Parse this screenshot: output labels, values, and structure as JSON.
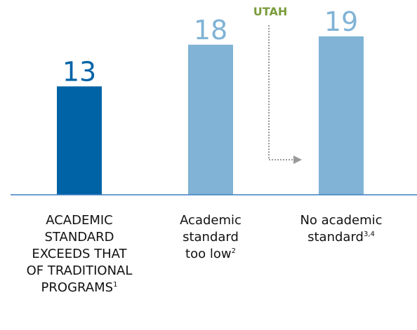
{
  "chart_data": {
    "type": "bar",
    "categories": [
      "ACADEMIC STANDARD EXCEEDS THAT OF TRADITIONAL PROGRAMS",
      "Academic standard too low",
      "No academic standard"
    ],
    "category_notes": [
      "1",
      "2",
      "3,4"
    ],
    "values": [
      13,
      18,
      19
    ],
    "colors": [
      "#0063a6",
      "#80b3d5",
      "#80b3d5"
    ],
    "ylim": [
      0,
      20
    ],
    "annotation": {
      "text": "UTAH",
      "color": "#7a9c3c"
    }
  }
}
